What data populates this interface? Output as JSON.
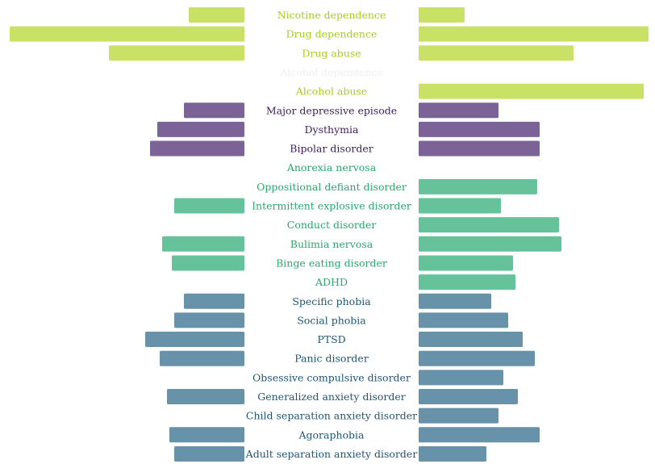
{
  "chart_data": {
    "type": "bar",
    "layout": "mirrored-horizontal-bars",
    "title": "",
    "legend": "none",
    "grid": false,
    "axes_visible": false,
    "groups": {
      "substance": {
        "bar_color": "#c9e265",
        "label_color": "#a8cc22"
      },
      "mood": {
        "bar_color": "#7b6398",
        "label_color": "#3e1d5a"
      },
      "eating_behavior": {
        "bar_color": "#66c29b",
        "label_color": "#2da66e"
      },
      "anxiety": {
        "bar_color": "#6892aa",
        "label_color": "#1e5674"
      }
    },
    "categories": [
      "Nicotine dependence",
      "Drug dependence",
      "Drug abuse",
      "Alcohol dependence",
      "Alcohol abuse",
      "Major depressive episode",
      "Dysthymia",
      "Bipolar disorder",
      "Anorexia nervosa",
      "Oppositional defiant disorder",
      "Intermittent explosive disorder",
      "Conduct disorder",
      "Bulimia nervosa",
      "Binge eating disorder",
      "ADHD",
      "Specific phobia",
      "Social phobia",
      "PTSD",
      "Panic disorder",
      "Obsessive compulsive disorder",
      "Generalized anxiety disorder",
      "Child separation anxiety disorder",
      "Agoraphobia",
      "Adult separation anxiety disorder"
    ],
    "category_group": [
      "substance",
      "substance",
      "substance",
      "substance",
      "substance",
      "mood",
      "mood",
      "mood",
      "eating_behavior",
      "eating_behavior",
      "eating_behavior",
      "eating_behavior",
      "eating_behavior",
      "eating_behavior",
      "eating_behavior",
      "anxiety",
      "anxiety",
      "anxiety",
      "anxiety",
      "anxiety",
      "anxiety",
      "anxiety",
      "anxiety",
      "anxiety"
    ],
    "category_faded": [
      false,
      false,
      false,
      true,
      false,
      false,
      false,
      false,
      false,
      false,
      false,
      false,
      false,
      false,
      false,
      false,
      false,
      false,
      false,
      false,
      false,
      false,
      false,
      false
    ],
    "series": [
      {
        "side": "left",
        "values": [
          23,
          97,
          56,
          0,
          0,
          25,
          36,
          39,
          0,
          0,
          29,
          0,
          34,
          30,
          0,
          25,
          29,
          41,
          35,
          0,
          32,
          0,
          31,
          29
        ]
      },
      {
        "side": "right",
        "values": [
          19,
          95,
          64,
          0,
          93,
          33,
          50,
          50,
          0,
          49,
          34,
          58,
          59,
          39,
          40,
          30,
          37,
          43,
          48,
          35,
          41,
          33,
          50,
          28
        ]
      }
    ],
    "xlim": [
      0,
      100
    ]
  }
}
